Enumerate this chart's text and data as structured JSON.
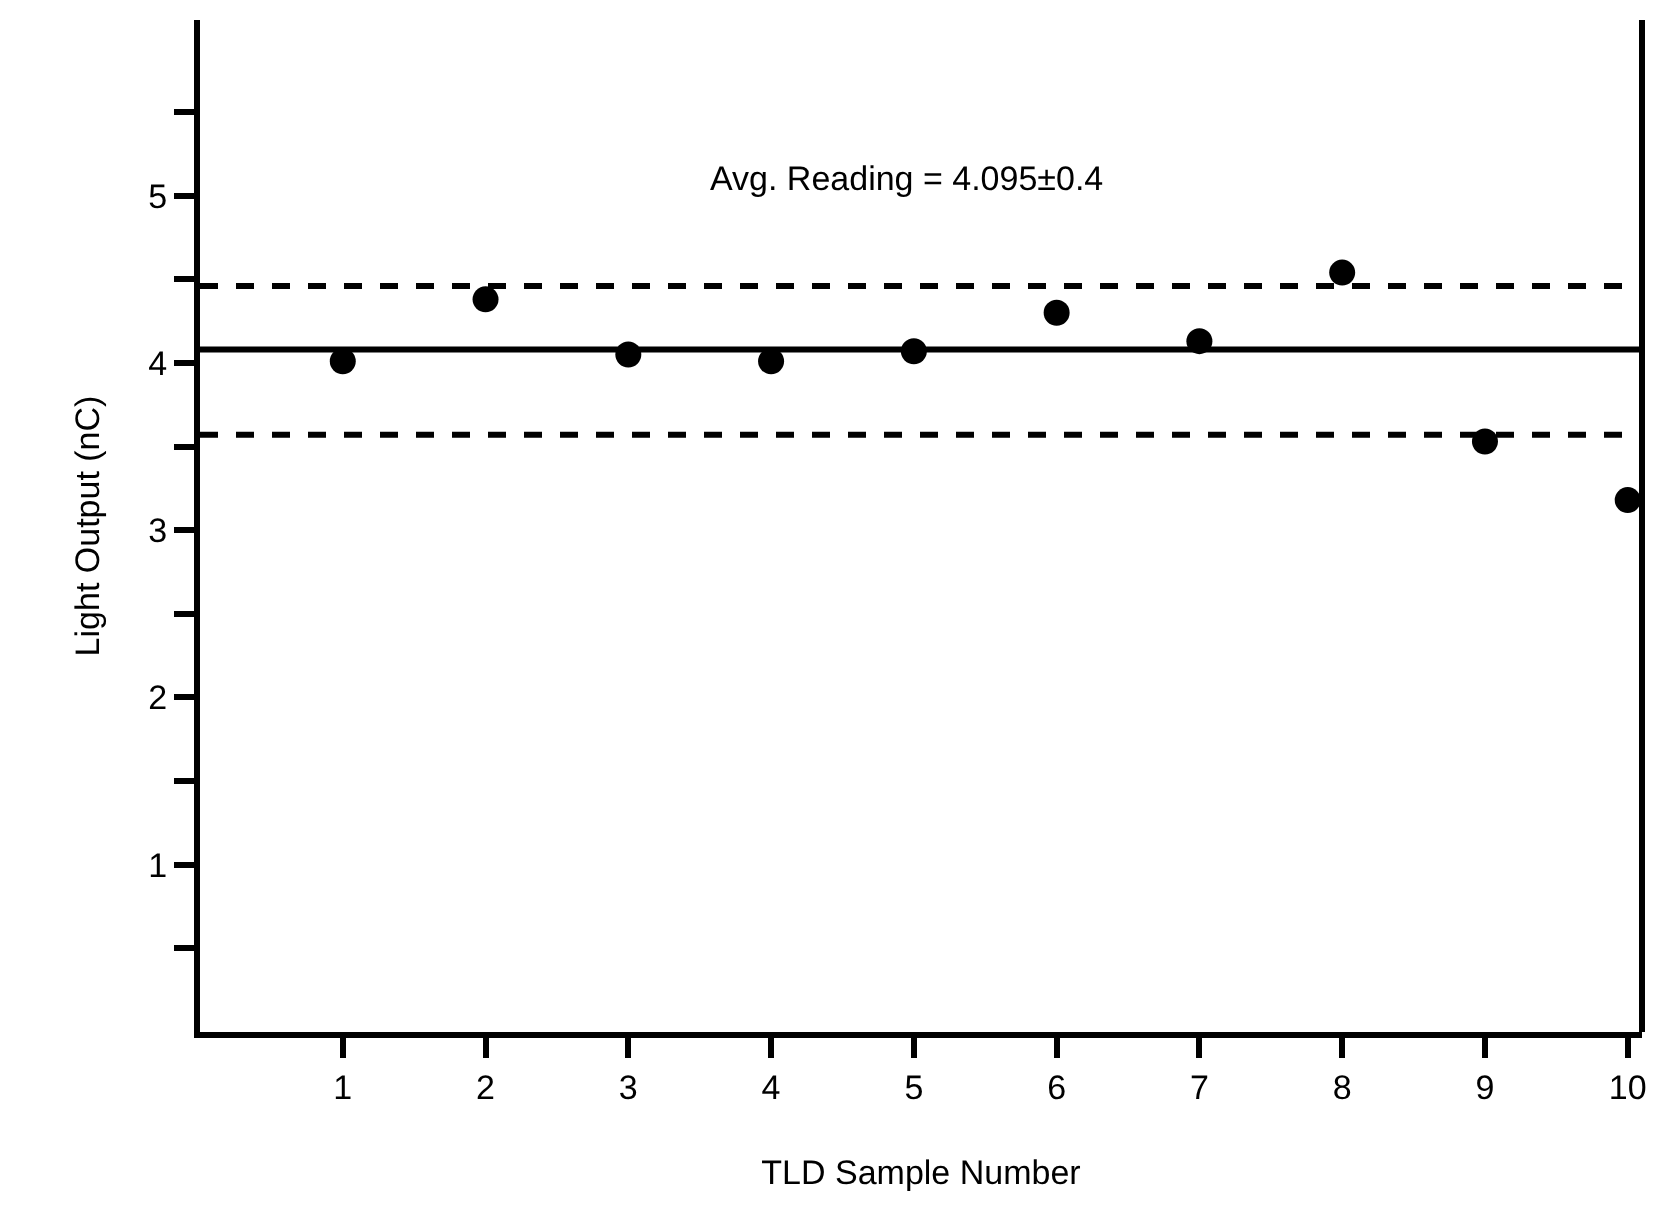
{
  "chart_data": {
    "type": "scatter",
    "xlabel": "TLD Sample Number",
    "ylabel": "Light Output (nC)",
    "x": [
      1,
      2,
      3,
      4,
      5,
      6,
      7,
      8,
      9,
      10
    ],
    "series": [
      {
        "color": "#000000",
        "values": [
          4.01,
          4.38,
          4.05,
          4.01,
          4.07,
          4.3,
          4.13,
          4.54,
          3.53,
          3.18
        ]
      }
    ],
    "xlim": [
      0,
      10.1
    ],
    "xticks": [
      1,
      2,
      3,
      4,
      5,
      6,
      7,
      8,
      9,
      10
    ],
    "ylim": [
      0,
      6.05
    ],
    "yticks": [
      {
        "value": 0.5,
        "label": null
      },
      1,
      {
        "value": 1.5,
        "label": null
      },
      2,
      {
        "value": 2.5,
        "label": null
      },
      3,
      {
        "value": 3.5,
        "label": null
      },
      4,
      {
        "value": 4.5,
        "label": null
      },
      5,
      {
        "value": 5.5,
        "label": null
      }
    ],
    "ref_lines": [
      {
        "axis": "y",
        "value": 4.08,
        "line_style": "solid",
        "color": "#000000"
      },
      {
        "axis": "y",
        "value": 4.46,
        "line_style": "dashed",
        "color": "#000000"
      },
      {
        "axis": "y",
        "value": 3.57,
        "line_style": "dashed",
        "color": "#000000"
      }
    ],
    "annotations": [
      "Avg. Reading = 4.095±0.4"
    ],
    "grid": false,
    "marker": "circle"
  }
}
